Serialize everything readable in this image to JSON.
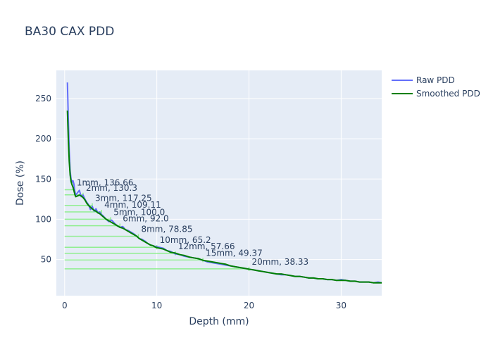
{
  "chart_data": {
    "type": "line",
    "title": "BA30 CAX PDD",
    "xlabel": "Depth (mm)",
    "ylabel": "Dose (%)",
    "xlim": [
      -0.9,
      34.4
    ],
    "ylim": [
      5,
      285
    ],
    "x_ticks": [
      0,
      10,
      20,
      30
    ],
    "y_ticks": [
      50,
      100,
      150,
      200,
      250
    ],
    "grid": true,
    "legend_position": "top-right",
    "series": [
      {
        "name": "Raw PDD",
        "color": "#636efa",
        "x": [
          0.3,
          0.4,
          0.5,
          0.6,
          0.7,
          0.8,
          0.9,
          1.0,
          1.1,
          1.2,
          1.4,
          1.6,
          1.8,
          2.0,
          2.2,
          2.4,
          2.6,
          2.8,
          3.0,
          3.2,
          3.4,
          3.6,
          3.8,
          4.0,
          4.2,
          4.5,
          4.8,
          5.1,
          5.4,
          5.7,
          6.0,
          6.3,
          6.6,
          6.9,
          7.2,
          7.5,
          7.8,
          8.1,
          8.4,
          8.7,
          9.0,
          9.3,
          9.6,
          9.9,
          10.3,
          10.7,
          11.1,
          11.5,
          12.0,
          12.5,
          13.0,
          13.5,
          14.0,
          14.5,
          15.0,
          15.5,
          16.0,
          16.5,
          17.0,
          17.5,
          18.0,
          18.5,
          19.0,
          19.5,
          20.0,
          20.5,
          21.0,
          21.5,
          22.0,
          22.5,
          23.0,
          23.5,
          24.0,
          24.5,
          25.0,
          25.5,
          26.0,
          26.5,
          27.0,
          27.5,
          28.0,
          28.5,
          29.0,
          29.5,
          30.0,
          30.5,
          31.0,
          31.5,
          32.0,
          32.5,
          33.0,
          33.5,
          34.0,
          34.4
        ],
        "values": [
          270,
          225,
          185,
          160,
          150,
          146,
          148,
          144,
          135,
          130,
          133,
          136,
          128,
          130,
          125,
          121,
          118,
          112,
          116,
          110,
          113,
          108,
          109,
          106,
          104,
          100,
          97,
          99,
          95,
          92,
          90,
          91,
          87,
          86,
          84,
          82,
          79,
          76,
          75,
          73,
          70,
          68,
          67,
          66,
          65,
          64,
          61,
          60,
          57,
          56,
          54,
          53,
          52,
          51,
          49,
          47,
          46,
          45,
          44,
          43,
          42,
          41,
          40,
          39,
          38,
          37,
          36,
          35,
          34,
          33,
          32,
          31,
          31,
          30,
          29,
          29,
          28,
          27,
          27,
          26,
          26,
          25,
          25,
          24,
          25,
          24,
          23,
          23,
          22,
          22,
          22,
          21,
          22,
          21
        ]
      },
      {
        "name": "Smoothed PDD",
        "color": "#008000",
        "x": [
          0.3,
          0.4,
          0.5,
          0.6,
          0.7,
          0.8,
          0.9,
          1.0,
          1.1,
          1.2,
          1.4,
          1.6,
          1.8,
          2.0,
          2.2,
          2.4,
          2.6,
          2.8,
          3.0,
          3.2,
          3.4,
          3.6,
          3.8,
          4.0,
          4.2,
          4.5,
          4.8,
          5.1,
          5.4,
          5.7,
          6.0,
          6.3,
          6.6,
          6.9,
          7.2,
          7.5,
          7.8,
          8.1,
          8.4,
          8.7,
          9.0,
          9.3,
          9.6,
          9.9,
          10.3,
          10.7,
          11.1,
          11.5,
          12.0,
          12.5,
          13.0,
          13.5,
          14.0,
          14.5,
          15.0,
          15.5,
          16.0,
          16.5,
          17.0,
          17.5,
          18.0,
          18.5,
          19.0,
          19.5,
          20.0,
          20.5,
          21.0,
          21.5,
          22.0,
          22.5,
          23.0,
          23.5,
          24.0,
          24.5,
          25.0,
          25.5,
          26.0,
          26.5,
          27.0,
          27.5,
          28.0,
          28.5,
          29.0,
          29.5,
          30.0,
          30.5,
          31.0,
          31.5,
          32.0,
          32.5,
          33.0,
          33.5,
          34.0,
          34.4
        ],
        "values": [
          235,
          200,
          172,
          155,
          147,
          143,
          140,
          136,
          131,
          128,
          129,
          130,
          129,
          127,
          124,
          120,
          117,
          115,
          113,
          111,
          110,
          108,
          107,
          105,
          103,
          100,
          98,
          96,
          94,
          92,
          90,
          89,
          87,
          85,
          83,
          81,
          79,
          76,
          74,
          72,
          70,
          68,
          67,
          65,
          64,
          63,
          61,
          59,
          58,
          56,
          55,
          53,
          52,
          51,
          49,
          48,
          47,
          46,
          45,
          44,
          42,
          41,
          40,
          39,
          38,
          37,
          36,
          35,
          34,
          33,
          32,
          32,
          31,
          30,
          29,
          29,
          28,
          27,
          27,
          26,
          26,
          25,
          25,
          24,
          24,
          24,
          23,
          23,
          22,
          22,
          22,
          21,
          21,
          21
        ]
      }
    ],
    "markers": {
      "color": "#90ee90",
      "points": [
        {
          "depth": 1,
          "dose": 136.66,
          "label": "1mm, 136.66"
        },
        {
          "depth": 2,
          "dose": 130.3,
          "label": "2mm, 130.3"
        },
        {
          "depth": 3,
          "dose": 117.25,
          "label": "3mm, 117.25"
        },
        {
          "depth": 4,
          "dose": 109.11,
          "label": "4mm, 109.11"
        },
        {
          "depth": 5,
          "dose": 100.0,
          "label": "5mm, 100.0"
        },
        {
          "depth": 6,
          "dose": 92.0,
          "label": "6mm, 92.0"
        },
        {
          "depth": 8,
          "dose": 78.85,
          "label": "8mm, 78.85"
        },
        {
          "depth": 10,
          "dose": 65.2,
          "label": "10mm, 65.2"
        },
        {
          "depth": 12,
          "dose": 57.66,
          "label": "12mm, 57.66"
        },
        {
          "depth": 15,
          "dose": 49.37,
          "label": "15mm, 49.37"
        },
        {
          "depth": 20,
          "dose": 38.33,
          "label": "20mm, 38.33"
        }
      ]
    }
  }
}
